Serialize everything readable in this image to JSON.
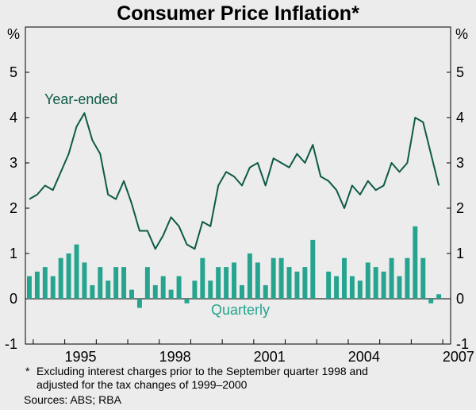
{
  "chart_data": {
    "type": "bar+line",
    "title": "Consumer Price Inflation*",
    "y_unit_label": "%",
    "ylim": [
      -1,
      6
    ],
    "yticks": [
      -1,
      0,
      1,
      2,
      3,
      4,
      5
    ],
    "x_tick_labels": [
      "1995",
      "1998",
      "2001",
      "2004",
      "2007"
    ],
    "quarters": [
      "1993-Q4",
      "1994-Q1",
      "1994-Q2",
      "1994-Q3",
      "1994-Q4",
      "1995-Q1",
      "1995-Q2",
      "1995-Q3",
      "1995-Q4",
      "1996-Q1",
      "1996-Q2",
      "1996-Q3",
      "1996-Q4",
      "1997-Q1",
      "1997-Q2",
      "1997-Q3",
      "1997-Q4",
      "1998-Q1",
      "1998-Q2",
      "1998-Q3",
      "1998-Q4",
      "1999-Q1",
      "1999-Q2",
      "1999-Q3",
      "1999-Q4",
      "2000-Q1",
      "2000-Q2",
      "2000-Q3",
      "2000-Q4",
      "2001-Q1",
      "2001-Q2",
      "2001-Q3",
      "2001-Q4",
      "2002-Q1",
      "2002-Q2",
      "2002-Q3",
      "2002-Q4",
      "2003-Q1",
      "2003-Q2",
      "2003-Q3",
      "2003-Q4",
      "2004-Q1",
      "2004-Q2",
      "2004-Q3",
      "2004-Q4",
      "2005-Q1",
      "2005-Q2",
      "2005-Q3",
      "2005-Q4",
      "2006-Q1",
      "2006-Q2",
      "2006-Q3",
      "2006-Q4",
      "2007-Q1"
    ],
    "series": [
      {
        "name": "Year-ended",
        "kind": "line",
        "color": "#0e5a46",
        "values": [
          2.2,
          2.3,
          2.5,
          2.4,
          2.8,
          3.2,
          3.8,
          4.1,
          3.5,
          3.2,
          2.3,
          2.2,
          2.6,
          2.1,
          1.5,
          1.5,
          1.1,
          1.4,
          1.8,
          1.6,
          1.2,
          1.1,
          1.7,
          1.6,
          2.5,
          2.8,
          2.7,
          2.5,
          2.9,
          3.0,
          2.5,
          3.1,
          3.0,
          2.9,
          3.2,
          3.0,
          3.4,
          2.7,
          2.6,
          2.4,
          2.0,
          2.5,
          2.3,
          2.6,
          2.4,
          2.5,
          3.0,
          2.8,
          3.0,
          4.0,
          3.9,
          3.2,
          2.5,
          null
        ]
      },
      {
        "name": "Quarterly",
        "kind": "bar",
        "color": "#26a48f",
        "values": [
          0.5,
          0.6,
          0.7,
          0.5,
          0.9,
          1.0,
          1.2,
          0.8,
          0.3,
          0.7,
          0.4,
          0.7,
          0.7,
          0.2,
          -0.2,
          0.7,
          0.3,
          0.5,
          0.2,
          0.5,
          -0.1,
          0.4,
          0.9,
          0.4,
          0.7,
          0.7,
          0.8,
          0.3,
          1.0,
          0.8,
          0.3,
          0.9,
          0.9,
          0.7,
          0.6,
          0.7,
          1.3,
          null,
          0.6,
          0.5,
          0.9,
          0.5,
          0.4,
          0.8,
          0.7,
          0.6,
          0.9,
          0.5,
          0.9,
          1.6,
          0.9,
          -0.1,
          0.1,
          null
        ]
      }
    ],
    "annotations": {
      "year_ended_label": "Year-ended",
      "quarterly_label": "Quarterly"
    },
    "notes": {
      "footnote_marker": "*",
      "footnote_line1": "Excluding interest charges prior to the September quarter 1998 and",
      "footnote_line2": "adjusted for the tax changes of 1999–2000",
      "sources": "Sources: ABS; RBA"
    },
    "grid": false,
    "legend": "none"
  }
}
